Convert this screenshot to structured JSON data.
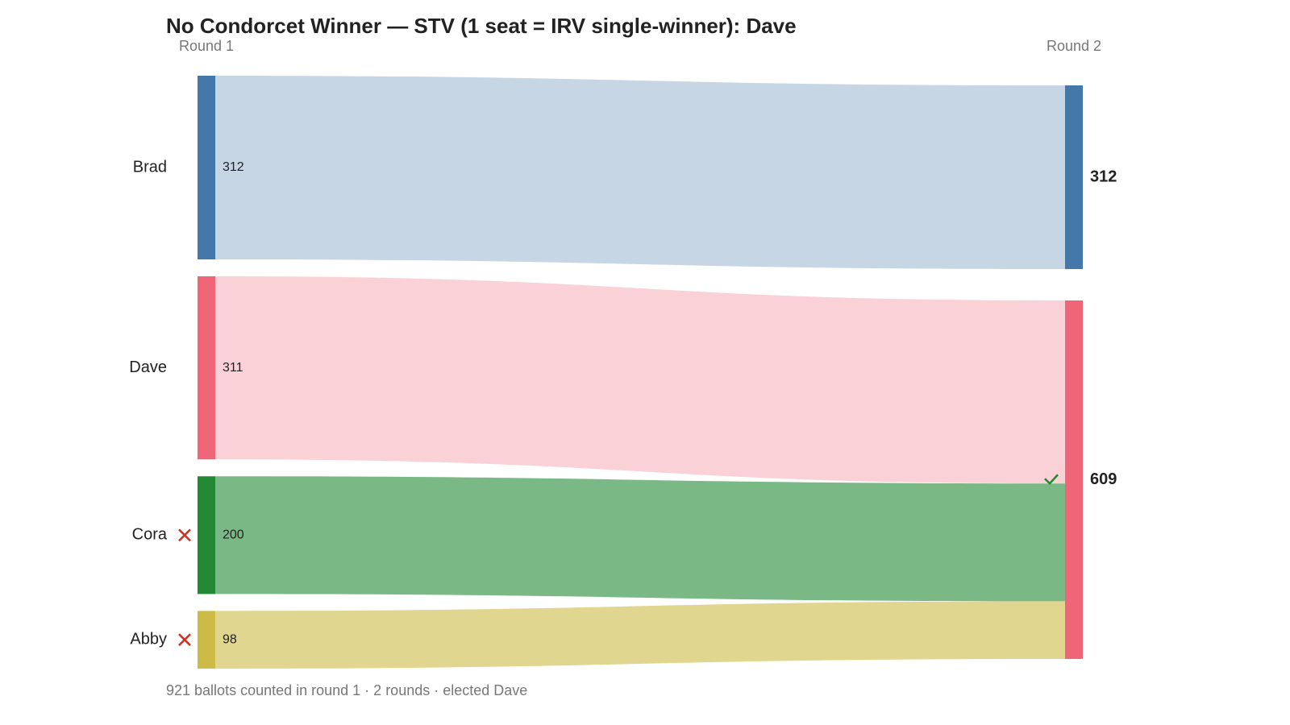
{
  "chart_data": {
    "type": "sankey",
    "title": "No Condorcet Winner — STV (1 seat = IRV single-winner): Dave",
    "rounds": [
      "Round 1",
      "Round 2"
    ],
    "candidates": [
      {
        "name": "Brad",
        "color": "#4477aa",
        "values": [
          312,
          312
        ]
      },
      {
        "name": "Dave",
        "color": "#ee6677",
        "values": [
          311,
          609
        ],
        "elected": true
      },
      {
        "name": "Cora",
        "color": "#228833",
        "values": [
          200,
          null
        ],
        "eliminated": true
      },
      {
        "name": "Abby",
        "color": "#ccbb44",
        "values": [
          98,
          null
        ],
        "eliminated": true
      }
    ],
    "flows": [
      {
        "from": "Brad",
        "to": "Brad",
        "value": 312
      },
      {
        "from": "Dave",
        "to": "Dave",
        "value": 311
      },
      {
        "from": "Cora",
        "to": "Dave",
        "value": 200
      },
      {
        "from": "Abby",
        "to": "Dave",
        "value": 98
      }
    ],
    "footer": "921 ballots counted in round 1 · 2 rounds · elected Dave"
  }
}
